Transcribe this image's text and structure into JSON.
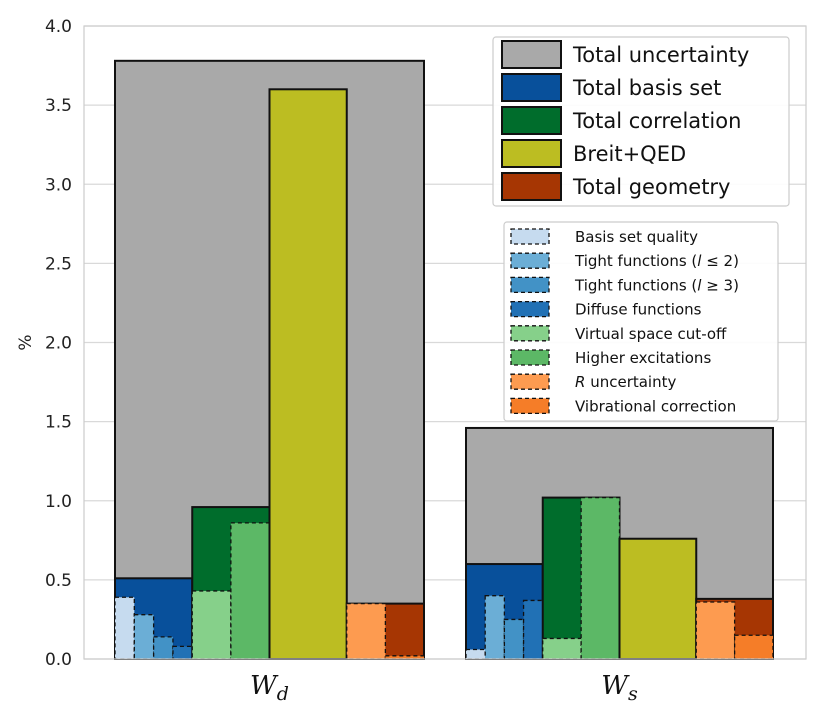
{
  "chart_data": {
    "type": "bar",
    "ylabel": "%",
    "ylim": [
      0,
      4.0
    ],
    "yticks": [
      "0.0",
      "0.5",
      "1.0",
      "1.5",
      "2.0",
      "2.5",
      "3.0",
      "3.5",
      "4.0"
    ],
    "grid": true,
    "groups": [
      {
        "name": "W",
        "subscript": "d",
        "total_uncertainty": 3.78,
        "subgroups": [
          {
            "total": {
              "name": "Total basis set",
              "value": 0.51
            },
            "components": [
              {
                "name": "Basis set quality",
                "value": 0.39
              },
              {
                "name": "Tight functions (l ≤ 2)",
                "value": 0.28
              },
              {
                "name": "Tight functions (l ≥ 3)",
                "value": 0.14
              },
              {
                "name": "Diffuse functions",
                "value": 0.08
              }
            ]
          },
          {
            "total": {
              "name": "Total correlation",
              "value": 0.96
            },
            "components": [
              {
                "name": "Virtual space cut-off",
                "value": 0.43
              },
              {
                "name": "Higher excitations",
                "value": 0.86
              }
            ]
          },
          {
            "total": {
              "name": "Breit+QED",
              "value": 3.6
            },
            "components": []
          },
          {
            "total": {
              "name": "Total geometry",
              "value": 0.35
            },
            "components": [
              {
                "name": "R uncertainty",
                "value": 0.35
              },
              {
                "name": "Vibrational correction",
                "value": 0.02
              }
            ]
          }
        ]
      },
      {
        "name": "W",
        "subscript": "s",
        "total_uncertainty": 1.46,
        "subgroups": [
          {
            "total": {
              "name": "Total basis set",
              "value": 0.6
            },
            "components": [
              {
                "name": "Basis set quality",
                "value": 0.06
              },
              {
                "name": "Tight functions (l ≤ 2)",
                "value": 0.4
              },
              {
                "name": "Tight functions (l ≥ 3)",
                "value": 0.25
              },
              {
                "name": "Diffuse functions",
                "value": 0.37
              }
            ]
          },
          {
            "total": {
              "name": "Total correlation",
              "value": 1.02
            },
            "components": [
              {
                "name": "Virtual space cut-off",
                "value": 0.13
              },
              {
                "name": "Higher excitations",
                "value": 1.02
              }
            ]
          },
          {
            "total": {
              "name": "Breit+QED",
              "value": 0.76
            },
            "components": []
          },
          {
            "total": {
              "name": "Total geometry",
              "value": 0.38
            },
            "components": [
              {
                "name": "R uncertainty",
                "value": 0.36
              },
              {
                "name": "Vibrational correction",
                "value": 0.15
              }
            ]
          }
        ]
      }
    ],
    "legend_totals": [
      {
        "label": "Total uncertainty",
        "color": "#a9a9a9"
      },
      {
        "label": "Total basis set",
        "color": "#08509b"
      },
      {
        "label": "Total correlation",
        "color": "#006d2c"
      },
      {
        "label": "Breit+QED",
        "color": "#bcbd22"
      },
      {
        "label": "Total geometry",
        "color": "#a63603"
      }
    ],
    "legend_components": [
      {
        "label": "Basis set quality",
        "color": "#c6dbef",
        "parts": [
          "Basis set quality"
        ]
      },
      {
        "label": "Tight functions (",
        "italic": "l",
        "suffix": " ≤ 2)",
        "color": "#6baed6"
      },
      {
        "label": "Tight functions (",
        "italic": "l",
        "suffix": " ≥ 3)",
        "color": "#4292c6"
      },
      {
        "label": "Diffuse functions",
        "color": "#2171b5"
      },
      {
        "label": "Virtual space cut-off",
        "color": "#86d08a"
      },
      {
        "label": "Higher excitations",
        "color": "#5cb866"
      },
      {
        "label": "",
        "italic": "R",
        "suffix": " uncertainty",
        "color": "#fd9b50"
      },
      {
        "label": "Vibrational correction",
        "color": "#f57d28"
      }
    ]
  }
}
